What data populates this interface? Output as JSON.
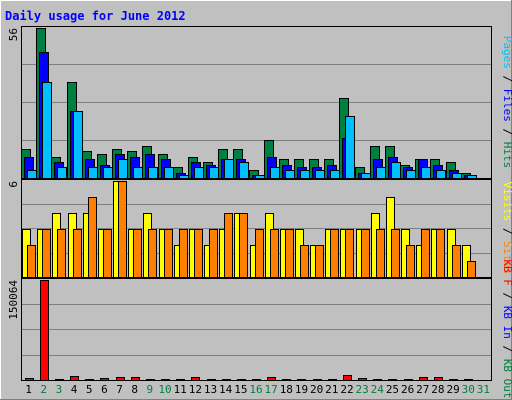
{
  "chart_data": {
    "title": "Daily usage for June 2012",
    "categories": [
      "1",
      "2",
      "3",
      "4",
      "5",
      "6",
      "7",
      "8",
      "9",
      "10",
      "11",
      "12",
      "13",
      "14",
      "15",
      "16",
      "17",
      "18",
      "19",
      "20",
      "21",
      "22",
      "23",
      "24",
      "25",
      "26",
      "27",
      "28",
      "29",
      "30",
      "31"
    ],
    "weekend_days": [
      "2",
      "3",
      "9",
      "10",
      "16",
      "17",
      "23",
      "24",
      "30",
      "31"
    ],
    "panels": [
      {
        "type": "bar",
        "label_parts": [
          {
            "text": "Pages",
            "color": "#00c0ff"
          },
          {
            "text": " / ",
            "color": "#000000"
          },
          {
            "text": "Files",
            "color": "#0000ff"
          },
          {
            "text": " / ",
            "color": "#000000"
          },
          {
            "text": "Hits",
            "color": "#008040"
          }
        ],
        "ymax_label": "56",
        "ylim": [
          0,
          56
        ],
        "series": [
          {
            "name": "Hits",
            "color": "#008040",
            "values": [
              11,
              56,
              8,
              36,
              10,
              9,
              11,
              10,
              12,
              9,
              4,
              8,
              6,
              11,
              11,
              3,
              14,
              7,
              7,
              7,
              7,
              30,
              4,
              12,
              12,
              5,
              7,
              7,
              6,
              2,
              0
            ]
          },
          {
            "name": "Files",
            "color": "#0000ff",
            "values": [
              8,
              47,
              6,
              25,
              7,
              5,
              9,
              8,
              9,
              7,
              2,
              6,
              5,
              7,
              7,
              1,
              8,
              5,
              4,
              4,
              5,
              15,
              2,
              7,
              8,
              4,
              7,
              5,
              3,
              1,
              0
            ]
          },
          {
            "name": "Pages",
            "color": "#00c0ff",
            "values": [
              3,
              36,
              4,
              25,
              4,
              4,
              7,
              4,
              4,
              4,
              1,
              4,
              4,
              7,
              6,
              1,
              4,
              3,
              3,
              3,
              3,
              23,
              2,
              4,
              6,
              3,
              4,
              3,
              2,
              1,
              0
            ]
          }
        ]
      },
      {
        "type": "bar",
        "label_parts": [
          {
            "text": "Visits",
            "color": "#ffff00"
          },
          {
            "text": " / ",
            "color": "#000000"
          },
          {
            "text": "Sites",
            "color": "#ff8000"
          }
        ],
        "ymax_label": "6",
        "ylim": [
          0,
          6
        ],
        "series": [
          {
            "name": "Visits",
            "color": "#ffff00",
            "values": [
              3,
              3,
              4,
              4,
              4,
              3,
              6,
              3,
              4,
              3,
              2,
              3,
              2,
              3,
              4,
              2,
              4,
              3,
              3,
              2,
              3,
              3,
              3,
              4,
              5,
              3,
              2,
              3,
              3,
              2,
              0
            ]
          },
          {
            "name": "Sites",
            "color": "#ff8000",
            "values": [
              2,
              3,
              3,
              3,
              5,
              3,
              6,
              3,
              3,
              3,
              3,
              3,
              3,
              4,
              4,
              3,
              3,
              3,
              2,
              2,
              3,
              3,
              3,
              3,
              3,
              2,
              3,
              3,
              2,
              1,
              0
            ]
          }
        ]
      },
      {
        "type": "bar",
        "label_parts": [
          {
            "text": "KB F",
            "color": "#ff0000"
          },
          {
            "text": " / ",
            "color": "#000000"
          },
          {
            "text": "KB In",
            "color": "#0000ff"
          },
          {
            "text": " / ",
            "color": "#000000"
          },
          {
            "text": "KB Out",
            "color": "#008040"
          }
        ],
        "ymax_label": "150064",
        "ylim": [
          0,
          150064
        ],
        "series": [
          {
            "name": "KB F",
            "color": "#ff0000",
            "values": [
              3000,
              150064,
              2000,
              6000,
              2000,
              3000,
              5000,
              4000,
              2000,
              2000,
              2000,
              5000,
              2000,
              2000,
              2000,
              2000,
              5000,
              2000,
              2000,
              2000,
              2000,
              7000,
              3000,
              2000,
              2000,
              2000,
              4000,
              5000,
              2000,
              2000,
              0
            ]
          }
        ]
      }
    ]
  }
}
